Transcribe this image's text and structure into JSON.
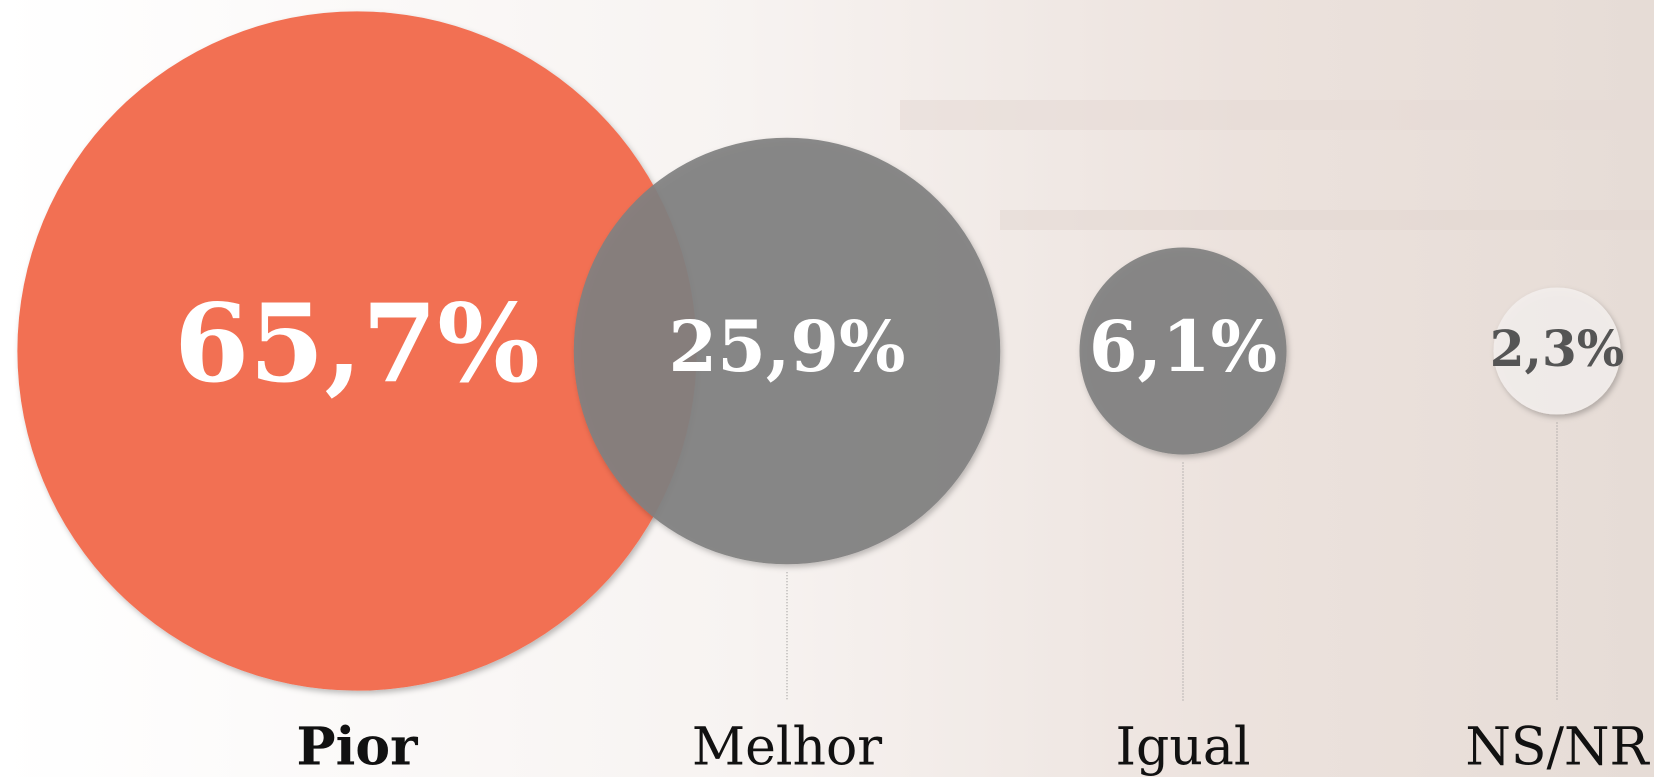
{
  "chart_data": {
    "type": "bubble",
    "categories": [
      "Pior",
      "Melhor",
      "Igual",
      "NS/NR"
    ],
    "values": [
      65.7,
      25.9,
      6.1,
      2.3
    ],
    "value_labels": [
      "65,7%",
      "25,9%",
      "6,1%",
      "2,3%"
    ],
    "colors": [
      "#f26f53",
      "#808080",
      "#808080",
      "#f2eeec"
    ]
  }
}
